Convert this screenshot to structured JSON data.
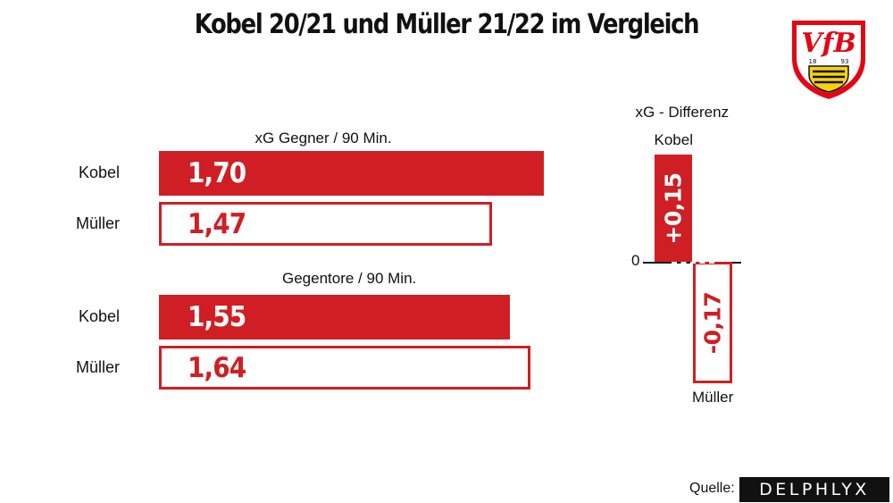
{
  "title": "Kobel 20/21 und Müller 21/22 im Vergleich",
  "logo": {
    "text": "VfB",
    "year_left": "18",
    "year_right": "93",
    "colors": {
      "red": "#e30613",
      "yellow": "#f5d20f",
      "black": "#111111"
    }
  },
  "colors": {
    "accent": "#cf1f24",
    "text": "#111111"
  },
  "source": {
    "label": "Quelle:",
    "brand": "DELPHLYX"
  },
  "chart_data": [
    {
      "type": "bar",
      "orientation": "horizontal",
      "title": "xG Gegner / 90 Min.",
      "categories": [
        "Kobel",
        "Müller"
      ],
      "values": [
        1.7,
        1.47
      ],
      "value_labels": [
        "1,70",
        "1,47"
      ],
      "styles": [
        "filled",
        "outline"
      ]
    },
    {
      "type": "bar",
      "orientation": "horizontal",
      "title": "Gegentore / 90 Min.",
      "categories": [
        "Kobel",
        "Müller"
      ],
      "values": [
        1.55,
        1.64
      ],
      "value_labels": [
        "1,55",
        "1,64"
      ],
      "styles": [
        "filled",
        "outline"
      ]
    },
    {
      "type": "bar",
      "orientation": "vertical",
      "title": "xG - Differenz",
      "categories": [
        "Kobel",
        "Müller"
      ],
      "values": [
        0.15,
        -0.17
      ],
      "value_labels": [
        "+0,15",
        "-0,17"
      ],
      "styles": [
        "filled",
        "outline"
      ],
      "zero_label": "0"
    }
  ]
}
